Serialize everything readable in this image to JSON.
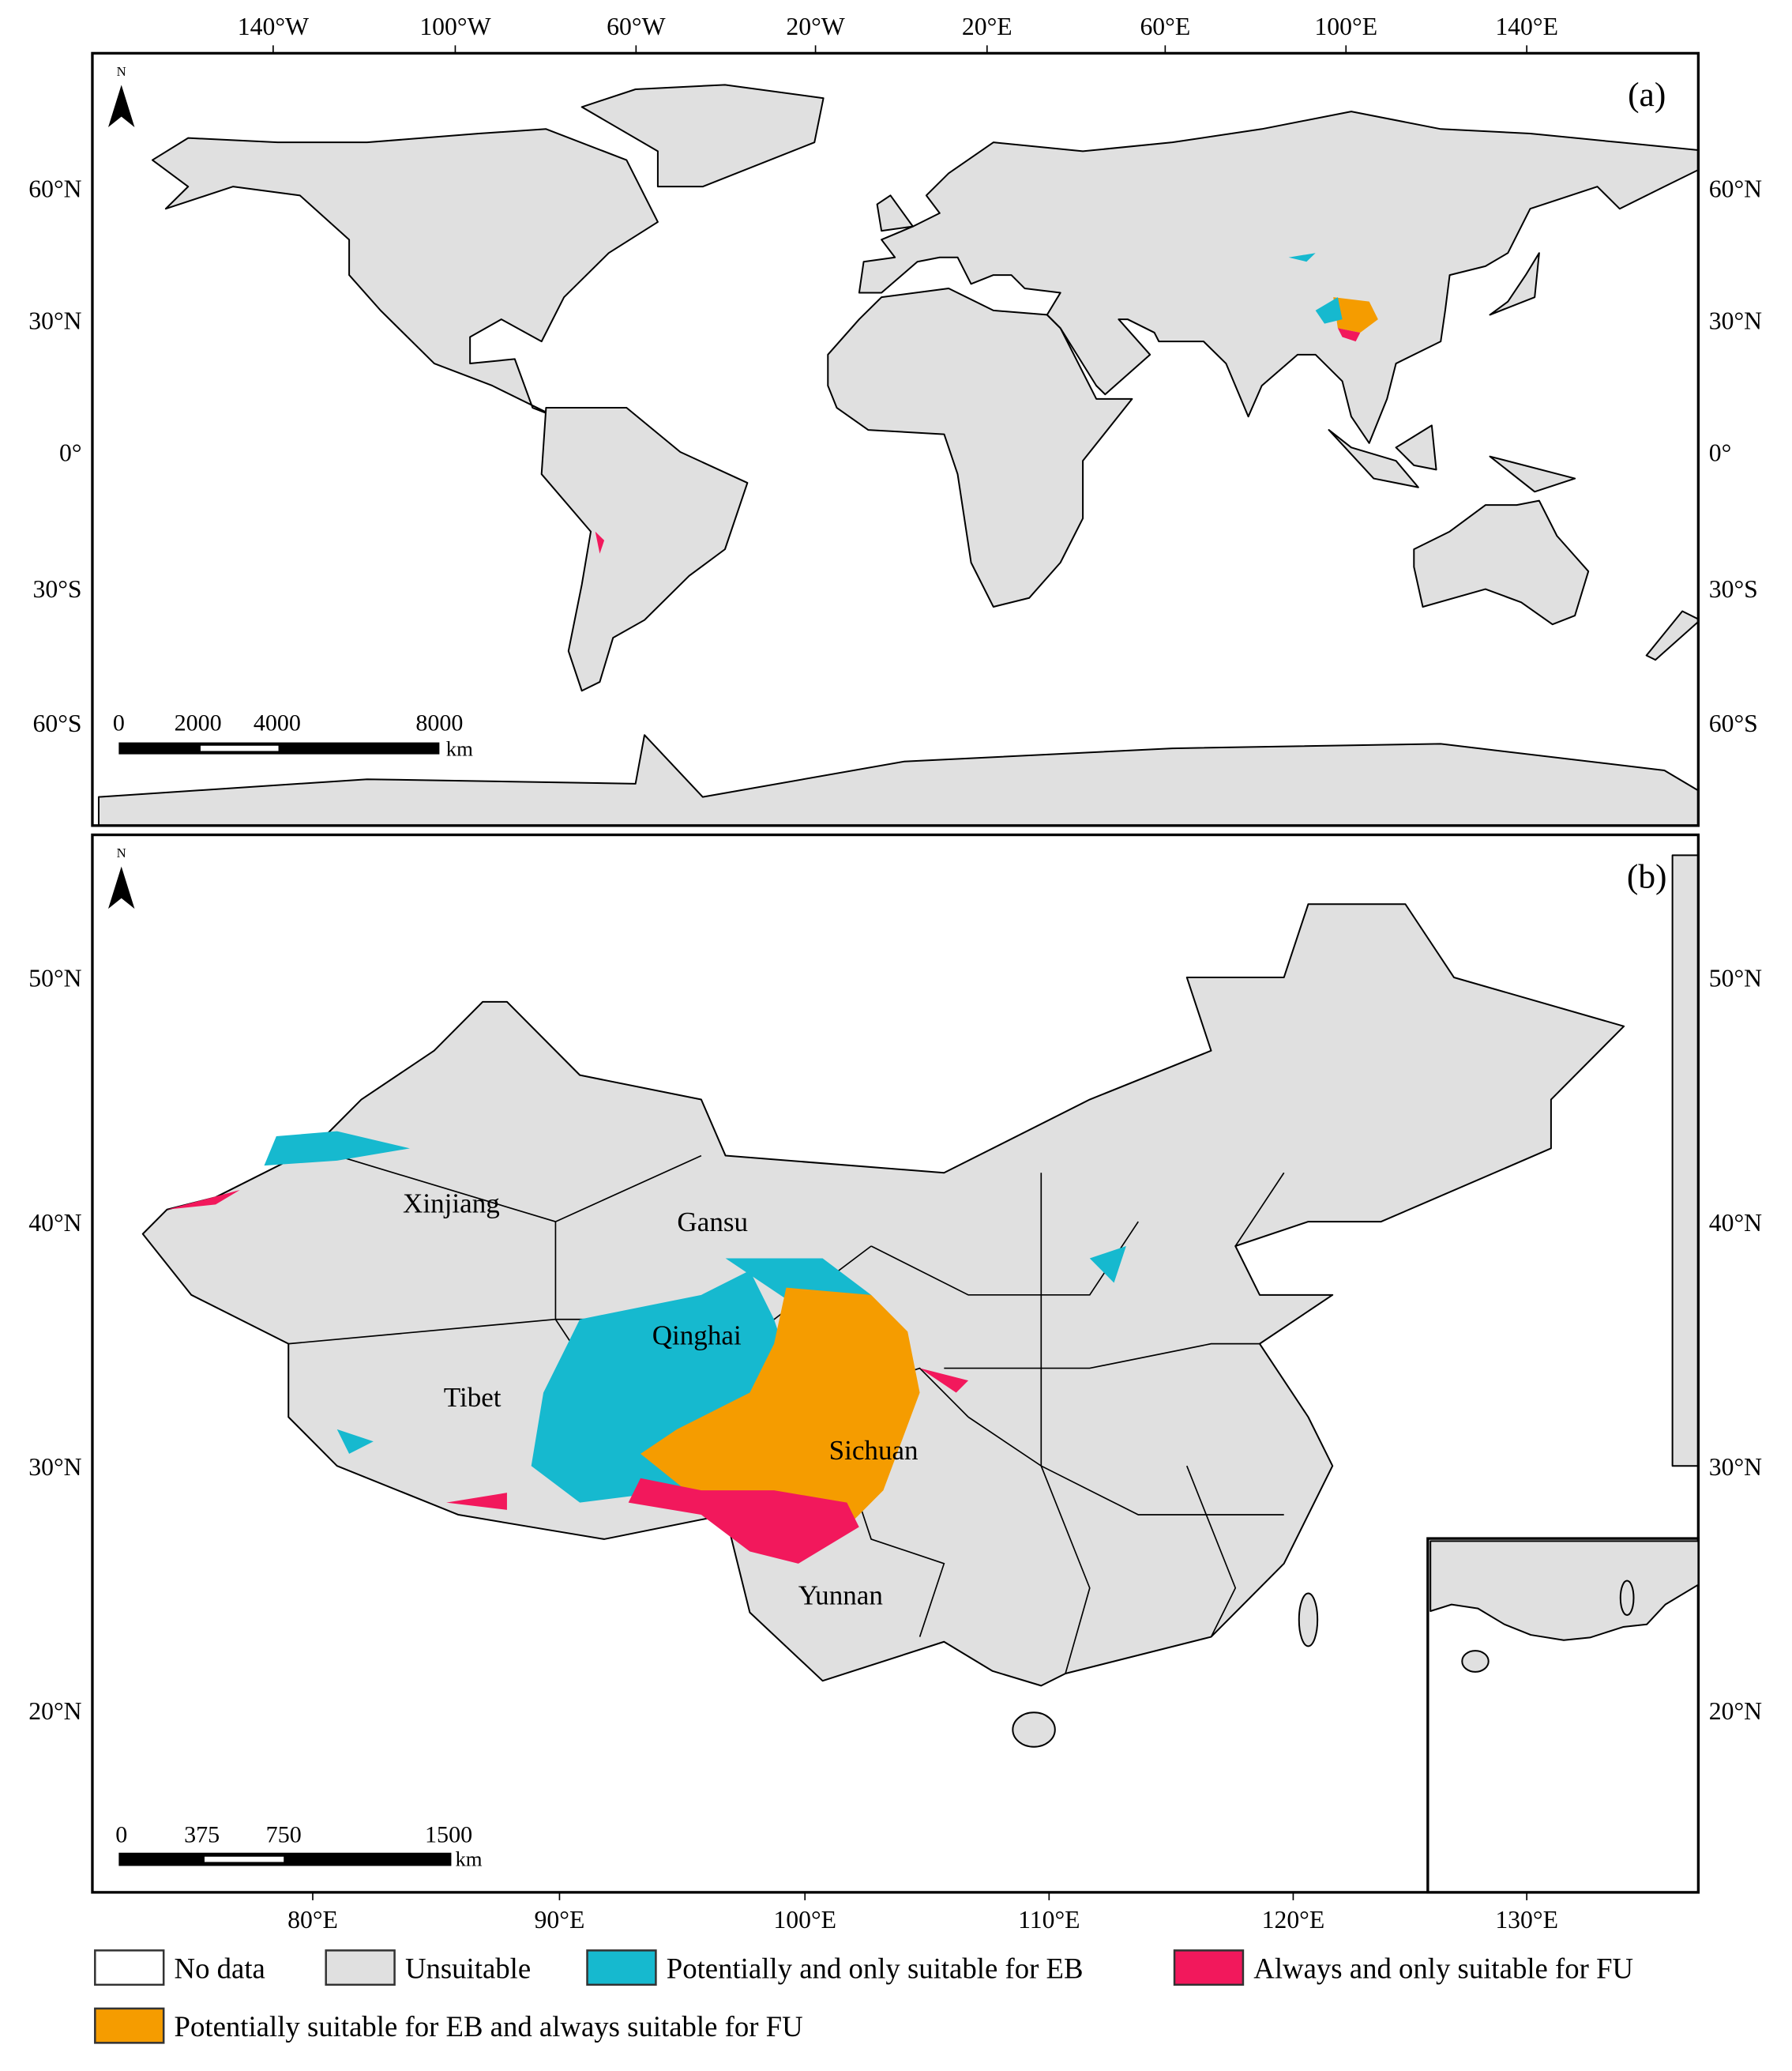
{
  "panel_a": {
    "label": "(a)",
    "north": "N",
    "top_ticks": [
      "140°W",
      "100°W",
      "60°W",
      "20°W",
      "20°E",
      "60°E",
      "100°E",
      "140°E"
    ],
    "left_ticks": [
      "60°N",
      "30°N",
      "0°",
      "30°S",
      "60°S"
    ],
    "right_ticks": [
      "60°N",
      "30°N",
      "0°",
      "30°S",
      "60°S"
    ],
    "scale": {
      "labels": [
        "0",
        "2000",
        "4000",
        "8000"
      ],
      "unit": "km"
    }
  },
  "panel_b": {
    "label": "(b)",
    "north": "N",
    "left_ticks": [
      "50°N",
      "40°N",
      "30°N",
      "20°N"
    ],
    "right_ticks": [
      "50°N",
      "40°N",
      "30°N",
      "20°N"
    ],
    "bottom_ticks": [
      "80°E",
      "90°E",
      "100°E",
      "110°E",
      "120°E",
      "130°E"
    ],
    "scale": {
      "labels": [
        "0",
        "375",
        "750",
        "1500"
      ],
      "unit": "km"
    },
    "places": [
      "Xinjiang",
      "Gansu",
      "Qinghai",
      "Tibet",
      "Sichuan",
      "Yunnan"
    ]
  },
  "legend": [
    {
      "label": "No data",
      "color": "#ffffff"
    },
    {
      "label": "Unsuitable",
      "color": "#e0e0e0"
    },
    {
      "label": "Potentially and only suitable for EB",
      "color": "#16b9cf"
    },
    {
      "label": "Always and only suitable for FU",
      "color": "#f2185c"
    },
    {
      "label": "Potentially suitable for EB and always suitable for FU",
      "color": "#f59c00"
    }
  ]
}
